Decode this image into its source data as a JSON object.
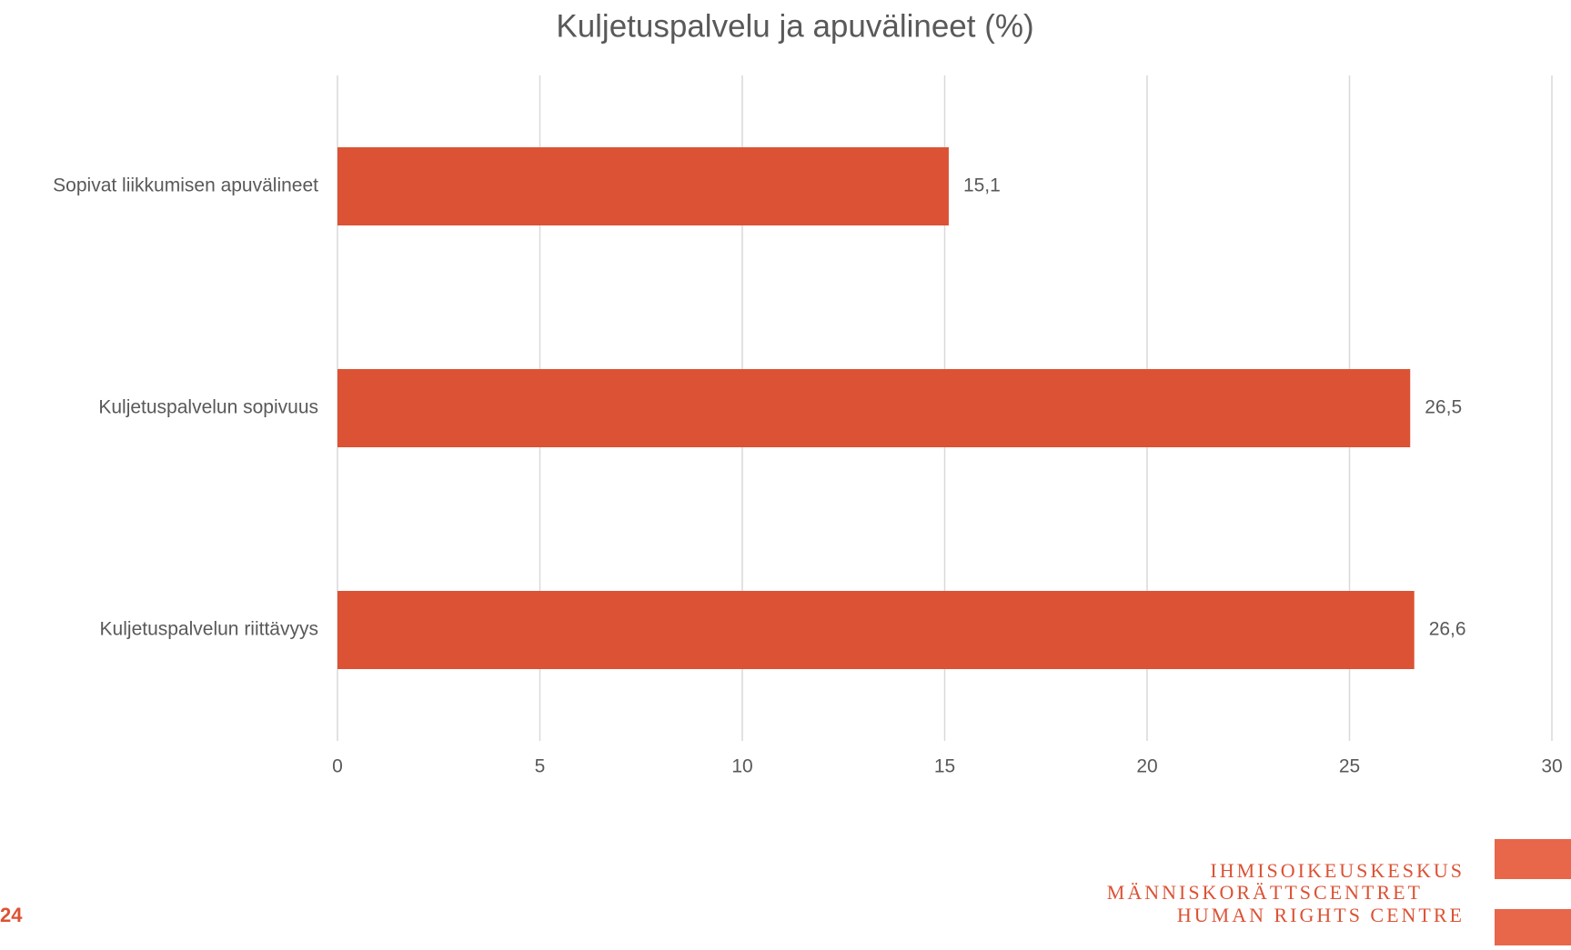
{
  "chart_data": {
    "type": "barh",
    "title": "Kuljetuspalvelu ja apuvälineet (%)",
    "categories": [
      "Sopivat liikkumisen apuvälineet",
      "Kuljetuspalvelun sopivuus",
      "Kuljetuspalvelun riittävyys"
    ],
    "values": [
      15.1,
      26.5,
      26.6
    ],
    "value_labels": [
      "15,1",
      "26,5",
      "26,6"
    ],
    "color": "#dc5234",
    "xlim": [
      0,
      30
    ],
    "xticks": [
      0,
      5,
      10,
      15,
      20,
      25,
      30
    ],
    "grid": true
  },
  "footer": {
    "page_number": "24",
    "logo": [
      "IHMISOIKEUSKESKUS",
      "MÄNNISKORÄTTSCENTRET",
      "HUMAN RIGHTS CENTRE"
    ]
  }
}
